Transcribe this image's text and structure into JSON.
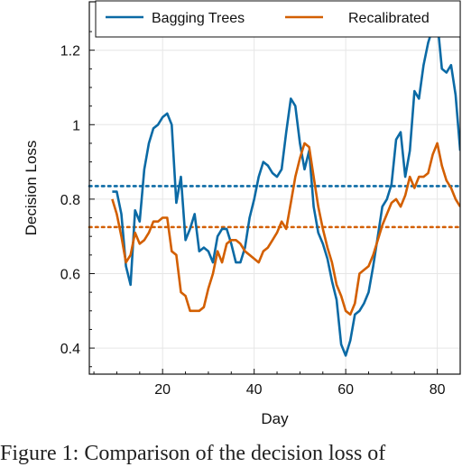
{
  "caption": "Figure 1: Comparison of the decision loss of",
  "chart_data": {
    "type": "line",
    "title": "",
    "xlabel": "Day",
    "ylabel": "Decision Loss",
    "xlim": [
      4,
      85
    ],
    "ylim": [
      0.33,
      1.33
    ],
    "xticks": [
      20,
      40,
      60,
      80
    ],
    "yticks": [
      0.4,
      0.6,
      0.8,
      1.0,
      1.2
    ],
    "ytick_labels": [
      "0.4",
      "0.6",
      "0.8",
      "1",
      "1.2"
    ],
    "grid": true,
    "legend_position": "top",
    "series": [
      {
        "name": "Bagging Trees",
        "color": "#0b6aa5",
        "mean": 0.835,
        "x": [
          9,
          10,
          11,
          12,
          13,
          14,
          15,
          16,
          17,
          18,
          19,
          20,
          21,
          22,
          23,
          24,
          25,
          26,
          27,
          28,
          29,
          30,
          31,
          32,
          33,
          34,
          35,
          36,
          37,
          38,
          39,
          40,
          41,
          42,
          43,
          44,
          45,
          46,
          47,
          48,
          49,
          50,
          51,
          52,
          53,
          54,
          55,
          56,
          57,
          58,
          59,
          60,
          61,
          62,
          63,
          64,
          65,
          66,
          67,
          68,
          69,
          70,
          71,
          72,
          73,
          74,
          75,
          76,
          77,
          78,
          79,
          80,
          81,
          82,
          83,
          84,
          85
        ],
        "y": [
          0.82,
          0.82,
          0.76,
          0.62,
          0.57,
          0.77,
          0.74,
          0.88,
          0.95,
          0.99,
          1.0,
          1.02,
          1.03,
          1.0,
          0.79,
          0.86,
          0.69,
          0.72,
          0.76,
          0.66,
          0.67,
          0.66,
          0.63,
          0.7,
          0.72,
          0.72,
          0.68,
          0.63,
          0.63,
          0.67,
          0.75,
          0.8,
          0.86,
          0.9,
          0.89,
          0.87,
          0.86,
          0.88,
          0.98,
          1.07,
          1.05,
          0.95,
          0.88,
          0.93,
          0.78,
          0.71,
          0.68,
          0.64,
          0.58,
          0.53,
          0.41,
          0.38,
          0.42,
          0.49,
          0.5,
          0.52,
          0.55,
          0.62,
          0.7,
          0.78,
          0.8,
          0.84,
          0.96,
          0.98,
          0.86,
          0.93,
          1.09,
          1.07,
          1.16,
          1.22,
          1.26,
          1.28,
          1.15,
          1.14,
          1.16,
          1.08,
          0.93
        ]
      },
      {
        "name": "Recalibrated",
        "color": "#d35f00",
        "mean": 0.725,
        "x": [
          9,
          10,
          11,
          12,
          13,
          14,
          15,
          16,
          17,
          18,
          19,
          20,
          21,
          22,
          23,
          24,
          25,
          26,
          27,
          28,
          29,
          30,
          31,
          32,
          33,
          34,
          35,
          36,
          37,
          38,
          39,
          40,
          41,
          42,
          43,
          44,
          45,
          46,
          47,
          48,
          49,
          50,
          51,
          52,
          53,
          54,
          55,
          56,
          57,
          58,
          59,
          60,
          61,
          62,
          63,
          64,
          65,
          66,
          67,
          68,
          69,
          70,
          71,
          72,
          73,
          74,
          75,
          76,
          77,
          78,
          79,
          80,
          81,
          82,
          83,
          84,
          85
        ],
        "y": [
          0.8,
          0.76,
          0.7,
          0.63,
          0.65,
          0.71,
          0.68,
          0.69,
          0.71,
          0.74,
          0.74,
          0.75,
          0.75,
          0.66,
          0.65,
          0.55,
          0.54,
          0.5,
          0.5,
          0.5,
          0.51,
          0.56,
          0.6,
          0.66,
          0.63,
          0.68,
          0.69,
          0.69,
          0.68,
          0.66,
          0.65,
          0.64,
          0.63,
          0.66,
          0.67,
          0.69,
          0.71,
          0.74,
          0.72,
          0.79,
          0.86,
          0.91,
          0.95,
          0.94,
          0.86,
          0.78,
          0.72,
          0.67,
          0.63,
          0.57,
          0.54,
          0.5,
          0.49,
          0.52,
          0.6,
          0.61,
          0.62,
          0.65,
          0.69,
          0.73,
          0.76,
          0.79,
          0.8,
          0.78,
          0.81,
          0.86,
          0.83,
          0.86,
          0.86,
          0.87,
          0.92,
          0.95,
          0.89,
          0.85,
          0.83,
          0.8,
          0.78
        ]
      }
    ]
  }
}
